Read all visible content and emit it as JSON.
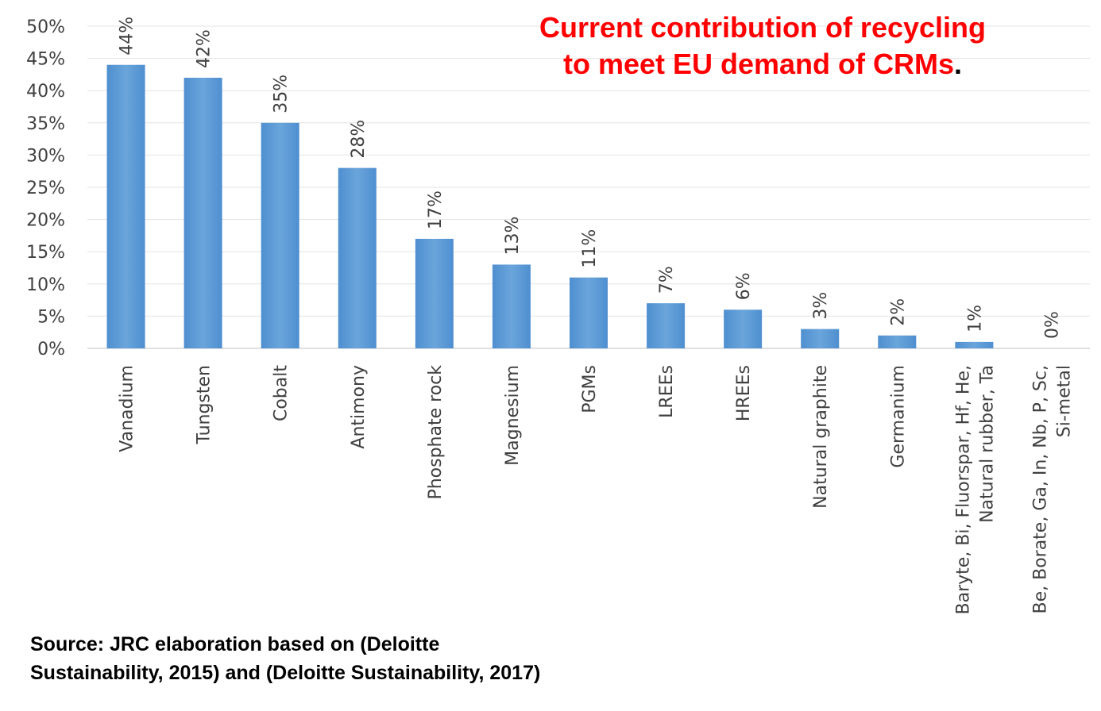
{
  "chart_data": {
    "type": "bar",
    "title": "Current contribution of recycling to meet EU demand of CRMs",
    "title_line1": "Current contribution of recycling",
    "title_line2": "to meet EU demand of CRMs",
    "title_suffix": ".",
    "source_line1": "Source: JRC elaboration based on (Deloitte",
    "source_line2": "Sustainability, 2015) and (Deloitte Sustainability, 2017)",
    "categories": [
      [
        "Vanadium"
      ],
      [
        "Tungsten"
      ],
      [
        "Cobalt"
      ],
      [
        "Antimony"
      ],
      [
        "Phosphate rock"
      ],
      [
        "Magnesium"
      ],
      [
        "PGMs"
      ],
      [
        "LREEs"
      ],
      [
        "HREEs"
      ],
      [
        "Natural graphite"
      ],
      [
        "Germanium"
      ],
      [
        "Baryte, Bi, Fluorspar, Hf, He,",
        "Natural rubber, Ta"
      ],
      [
        "Be, Borate, Ga, In, Nb, P, Sc,",
        "Si-metal"
      ]
    ],
    "values": [
      44,
      42,
      35,
      28,
      17,
      13,
      11,
      7,
      6,
      3,
      2,
      1,
      0
    ],
    "data_labels": [
      "44%",
      "42%",
      "35%",
      "28%",
      "17%",
      "13%",
      "11%",
      "7%",
      "6%",
      "3%",
      "2%",
      "1%",
      "0%"
    ],
    "ylim": [
      0,
      50
    ],
    "yticks": [
      "0%",
      "5%",
      "10%",
      "15%",
      "20%",
      "25%",
      "30%",
      "35%",
      "40%",
      "45%",
      "50%"
    ],
    "xlabel": "",
    "ylabel": "",
    "grid": true,
    "bar_color": "#5b9bd5",
    "title_color": "#ff0000"
  }
}
